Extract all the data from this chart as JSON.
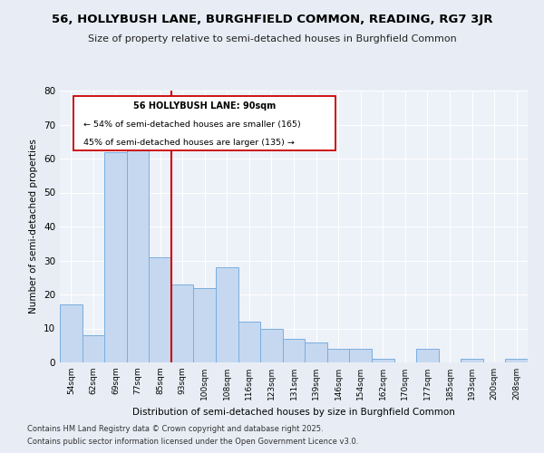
{
  "title": "56, HOLLYBUSH LANE, BURGHFIELD COMMON, READING, RG7 3JR",
  "subtitle": "Size of property relative to semi-detached houses in Burghfield Common",
  "xlabel": "Distribution of semi-detached houses by size in Burghfield Common",
  "ylabel": "Number of semi-detached properties",
  "categories": [
    "54sqm",
    "62sqm",
    "69sqm",
    "77sqm",
    "85sqm",
    "93sqm",
    "100sqm",
    "108sqm",
    "116sqm",
    "123sqm",
    "131sqm",
    "139sqm",
    "146sqm",
    "154sqm",
    "162sqm",
    "170sqm",
    "177sqm",
    "185sqm",
    "193sqm",
    "200sqm",
    "208sqm"
  ],
  "values": [
    17,
    8,
    62,
    63,
    31,
    23,
    22,
    28,
    12,
    10,
    7,
    6,
    4,
    4,
    1,
    0,
    4,
    0,
    1,
    0,
    1
  ],
  "bar_color": "#c5d8f0",
  "bar_edge_color": "#7aaee0",
  "vline_x_idx": 5,
  "vline_color": "#cc0000",
  "annotation_title": "56 HOLLYBUSH LANE: 90sqm",
  "annotation_line1": "← 54% of semi-detached houses are smaller (165)",
  "annotation_line2": "45% of semi-detached houses are larger (135) →",
  "annotation_box_color": "#cc0000",
  "ylim": [
    0,
    80
  ],
  "yticks": [
    0,
    10,
    20,
    30,
    40,
    50,
    60,
    70,
    80
  ],
  "footer1": "Contains HM Land Registry data © Crown copyright and database right 2025.",
  "footer2": "Contains public sector information licensed under the Open Government Licence v3.0.",
  "bg_color": "#e8edf5",
  "plot_bg_color": "#edf1f8"
}
